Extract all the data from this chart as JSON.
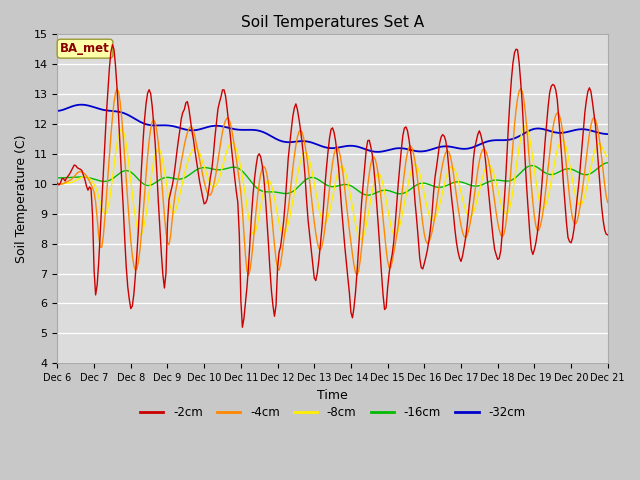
{
  "title": "Soil Temperatures Set A",
  "xlabel": "Time",
  "ylabel": "Soil Temperature (C)",
  "ylim": [
    4.0,
    15.0
  ],
  "yticks": [
    4.0,
    5.0,
    6.0,
    7.0,
    8.0,
    9.0,
    10.0,
    11.0,
    12.0,
    13.0,
    14.0,
    15.0
  ],
  "x_labels": [
    "Dec 6",
    "Dec 7",
    "Dec 8",
    "Dec 9",
    "Dec 10",
    "Dec 11",
    "Dec 12",
    "Dec 13",
    "Dec 14",
    "Dec 15",
    "Dec 16",
    "Dec 17",
    "Dec 18",
    "Dec 19",
    "Dec 20",
    "Dec 21"
  ],
  "annotation_text": "BA_met",
  "annotation_bg": "#ffffaa",
  "annotation_border": "#888844",
  "colors": {
    "-2cm": "#cc0000",
    "-4cm": "#ff8800",
    "-8cm": "#ffee00",
    "-16cm": "#00bb00",
    "-32cm": "#0000cc"
  },
  "legend_labels": [
    "-2cm",
    "-4cm",
    "-8cm",
    "-16cm",
    "-32cm"
  ],
  "fig_bg": "#c8c8c8",
  "plot_bg": "#dcdcdc",
  "grid_color": "#ffffff"
}
